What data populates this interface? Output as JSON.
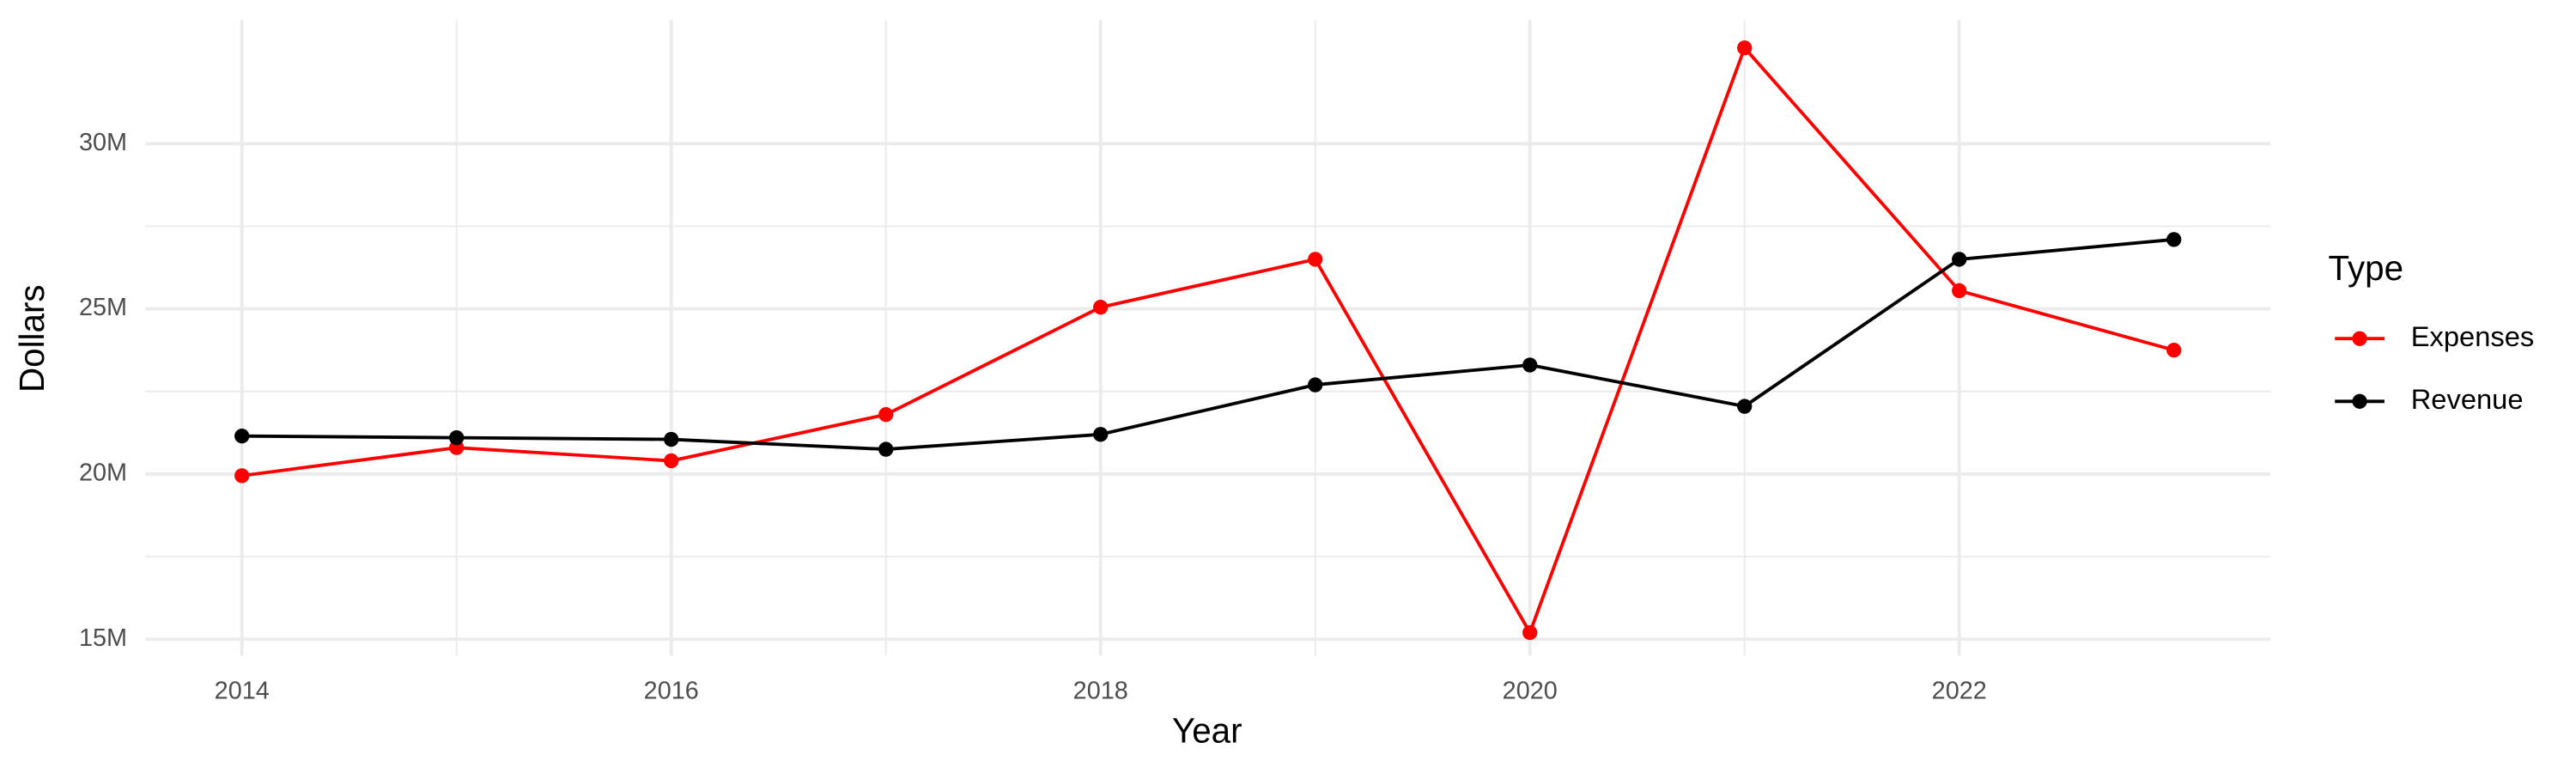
{
  "chart_data": {
    "type": "line",
    "x_label": "Year",
    "y_label": "Dollars",
    "legend_title": "Type",
    "legend_position": "right",
    "grid": true,
    "x": [
      2014,
      2015,
      2016,
      2017,
      2018,
      2019,
      2020,
      2021,
      2022,
      2023
    ],
    "series": [
      {
        "name": "Expenses",
        "color": "#ff0000",
        "values": [
          19950000,
          20800000,
          20400000,
          21800000,
          25050000,
          26500000,
          15200000,
          32900000,
          25550000,
          23750000
        ]
      },
      {
        "name": "Revenue",
        "color": "#000000",
        "values": [
          21150000,
          21100000,
          21050000,
          20750000,
          21200000,
          22700000,
          23300000,
          22050000,
          26500000,
          27100000
        ]
      }
    ],
    "xlim": [
      2013.55,
      2023.45
    ],
    "xticks": [
      2014,
      2016,
      2018,
      2020,
      2022
    ],
    "ylim": [
      14500000,
      33750000
    ],
    "yticks": [
      {
        "value": 15000000,
        "label": "15M"
      },
      {
        "value": 20000000,
        "label": "20M"
      },
      {
        "value": 25000000,
        "label": "25M"
      },
      {
        "value": 30000000,
        "label": "30M"
      }
    ]
  }
}
